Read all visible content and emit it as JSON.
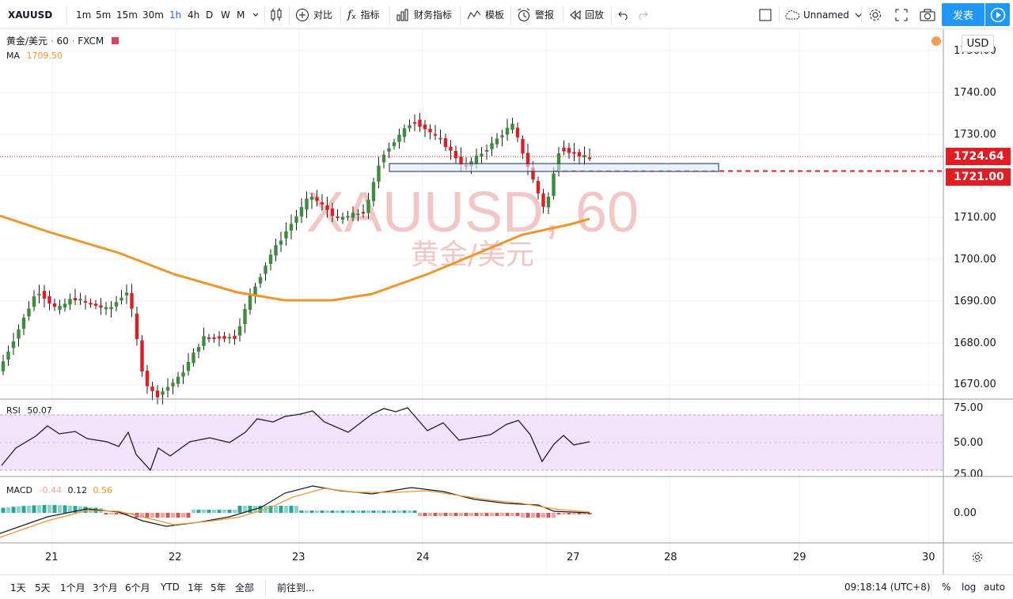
{
  "toolbar": {
    "symbol": "XAUUSD",
    "intervals": [
      "1m",
      "5m",
      "15m",
      "30m",
      "1h",
      "4h",
      "D",
      "W",
      "M"
    ],
    "active_interval": "1h",
    "compare": "对比",
    "indicators": "指标",
    "financials": "财务指标",
    "templates": "模板",
    "alert": "警报",
    "replay": "回放",
    "layout_name": "Unnamed",
    "publish": "发表"
  },
  "legend": {
    "name": "黄金/美元",
    "interval": "60",
    "source": "FXCM",
    "ma_label": "MA",
    "ma_value": "1709.50"
  },
  "watermark": {
    "symbol": "XAUUSD, 60",
    "name": "黄金/美元"
  },
  "currency": "USD",
  "price_axis": [
    "1740.00",
    "1730.00",
    "1720.00",
    "1710.00",
    "1700.00",
    "1690.00",
    "1680.00",
    "1670.00"
  ],
  "price_axis_top": "1750.00",
  "last_price": "1724.64",
  "alert_price": "1721.00",
  "rsi": {
    "label": "RSI",
    "value": "50.07",
    "axis": [
      "75.00",
      "50.00",
      "25.00"
    ]
  },
  "macd": {
    "label": "MACD",
    "hist": "-0.44",
    "macd": "0.12",
    "signal": "0.56",
    "axis": "0.00"
  },
  "time_axis": [
    "21",
    "22",
    "23",
    "24",
    "27",
    "28",
    "29",
    "30"
  ],
  "bottom": {
    "ranges": [
      "1天",
      "5天",
      "1个月",
      "3个月",
      "6个月",
      "YTD",
      "1年",
      "5年",
      "全部"
    ],
    "goto": "前往到...",
    "time": "09:18:14 (UTC+8)",
    "percent": "%",
    "log": "log",
    "auto": "auto"
  },
  "colors": {
    "up": "#26a69a",
    "up_candle": "#3c8c3c",
    "down": "#e31b23",
    "ma": "#f0952c",
    "rsi_band": "#f0e3fb",
    "accent": "#2196f3"
  }
}
